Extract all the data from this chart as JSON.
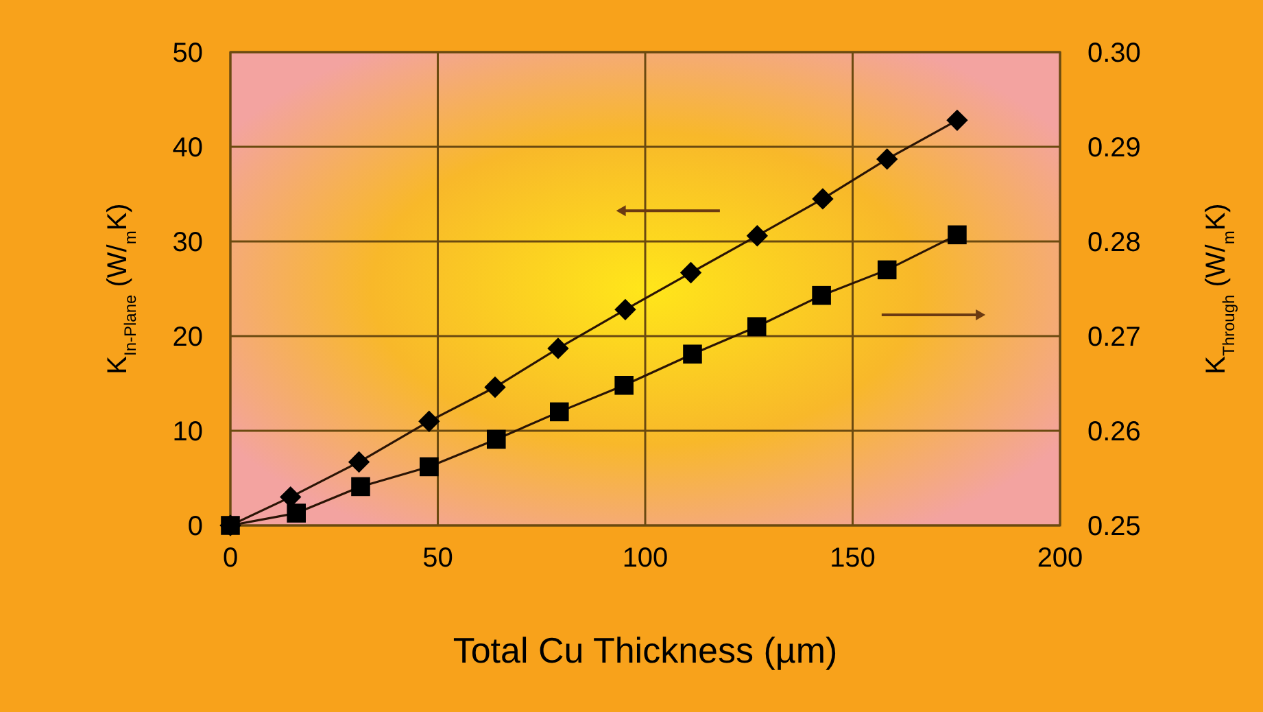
{
  "chart_data": {
    "type": "line",
    "xlabel": "Total Cu Thickness (µm)",
    "ylabel": "K$_{In-Plane}$ (W/$_{m}$K)",
    "y2label": "K$_{Through}$ (W/$_{m}$K)",
    "xlim": [
      0,
      200
    ],
    "xticks": [
      0,
      50,
      100,
      150,
      200
    ],
    "ylim": [
      0,
      50
    ],
    "yticks": [
      0,
      10,
      20,
      30,
      40,
      50
    ],
    "y2lim": [
      0.25,
      0.3
    ],
    "y2ticks": [
      {
        "value": 0.25,
        "label": "0.25"
      },
      {
        "value": 0.26,
        "label": "0.26"
      },
      {
        "value": 0.27,
        "label": "0.27"
      },
      {
        "value": 0.28,
        "label": "0.28"
      },
      {
        "value": 0.29,
        "label": "0.29"
      },
      {
        "value": 0.3,
        "label": "0.30"
      }
    ],
    "grid": true,
    "line_style": "solid",
    "series": [
      {
        "color": "#000000",
        "marker": "diamond",
        "x": [
          0,
          14.5,
          31,
          47.9,
          63.8,
          79,
          95.2,
          111,
          127,
          142.8,
          158.3,
          175.2
        ],
        "values": [
          0,
          3.0,
          6.7,
          11.0,
          14.6,
          18.7,
          22.8,
          26.7,
          30.6,
          34.5,
          38.7,
          42.8
        ]
      },
      {
        "color": "#000000",
        "marker": "square",
        "axis": "y2",
        "x": [
          0,
          15.9,
          31.4,
          47.9,
          64.1,
          79.3,
          94.9,
          111.4,
          126.9,
          142.5,
          158.3,
          175.2
        ],
        "values": [
          0.25,
          0.2513,
          0.2541,
          0.2562,
          0.2591,
          0.262,
          0.2648,
          0.2681,
          0.271,
          0.2743,
          0.277,
          0.2807
        ]
      }
    ]
  }
}
